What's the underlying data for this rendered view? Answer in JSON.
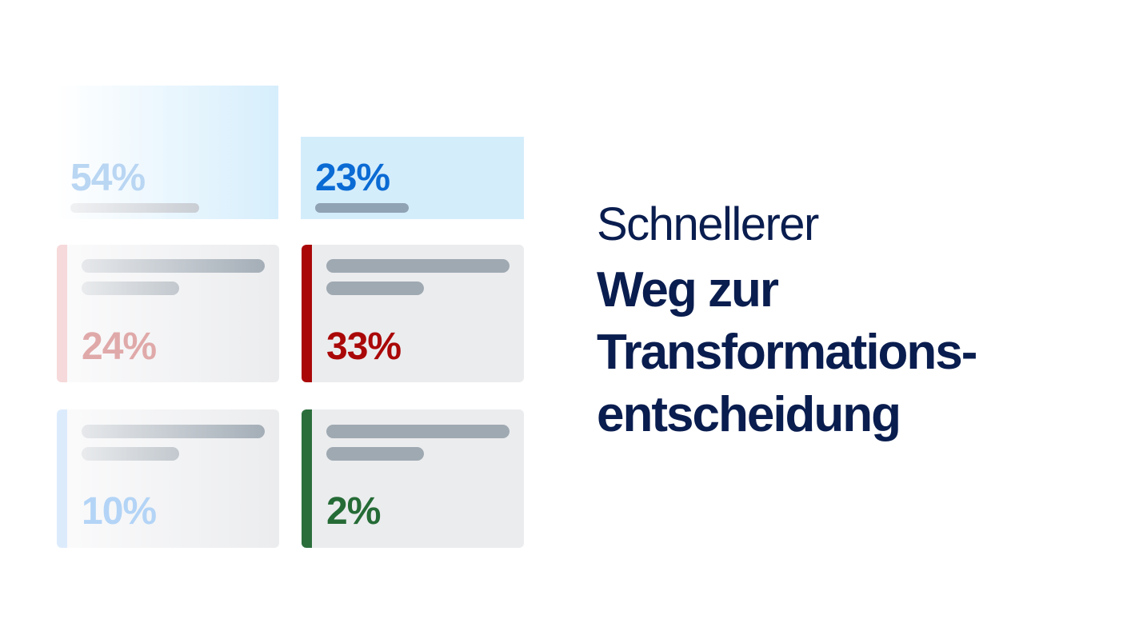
{
  "tiles": [
    {
      "value": "54%"
    },
    {
      "value": "23%"
    },
    {
      "value": "24%"
    },
    {
      "value": "33%"
    },
    {
      "value": "10%"
    },
    {
      "value": "2%"
    }
  ],
  "heading": {
    "light": "Schnellerer",
    "bold": [
      "Weg zur",
      "Transformations-",
      "entscheidung"
    ]
  }
}
